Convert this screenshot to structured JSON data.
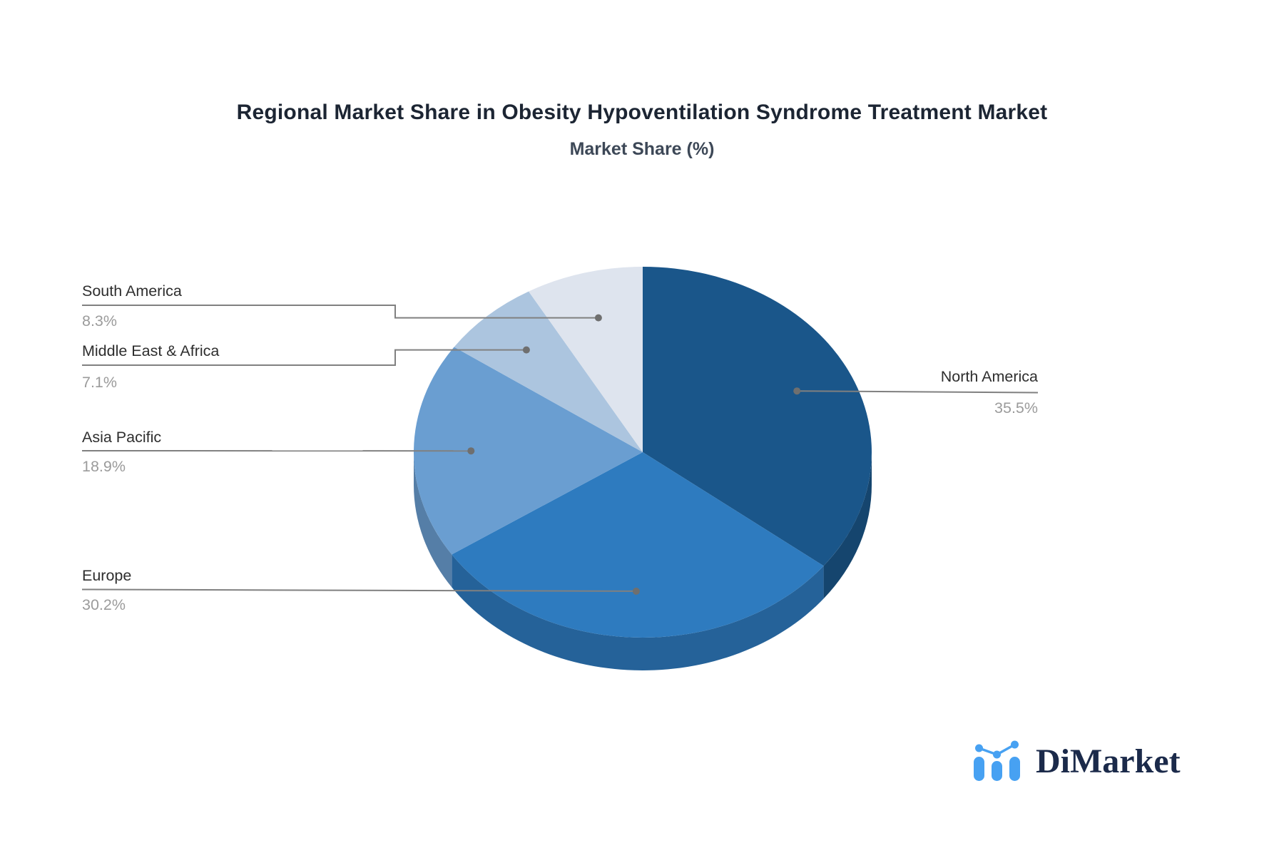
{
  "chart_data": {
    "type": "pie",
    "style": "3d",
    "title": "Regional Market Share in Obesity Hypoventilation Syndrome Treatment Market",
    "subtitle": "Market Share (%)",
    "unit": "%",
    "start_angle": "12 o'clock",
    "direction": "clockwise",
    "legend_position": "callout-labels",
    "connector_color": "#808080",
    "label_name_color": "#2E2E2E",
    "label_value_color": "#9B9B9B",
    "slices": [
      {
        "label": "North America",
        "value": 35.5,
        "display": "35.5%",
        "color": "#1A568A"
      },
      {
        "label": "Europe",
        "value": 30.2,
        "display": "30.2%",
        "color": "#2E7BBF"
      },
      {
        "label": "Asia Pacific",
        "value": 18.9,
        "display": "18.9%",
        "color": "#6A9ED1"
      },
      {
        "label": "Middle East & Africa",
        "value": 7.1,
        "display": "7.1%",
        "color": "#ACC5DF"
      },
      {
        "label": "South America",
        "value": 8.3,
        "display": "8.3%",
        "color": "#DEE4EE"
      }
    ]
  },
  "logo": {
    "text": "DiMarket",
    "icon": "bar-chart-with-trend-dots-icon",
    "icon_color": "#47A1F2",
    "text_color": "#1B2A4A"
  }
}
